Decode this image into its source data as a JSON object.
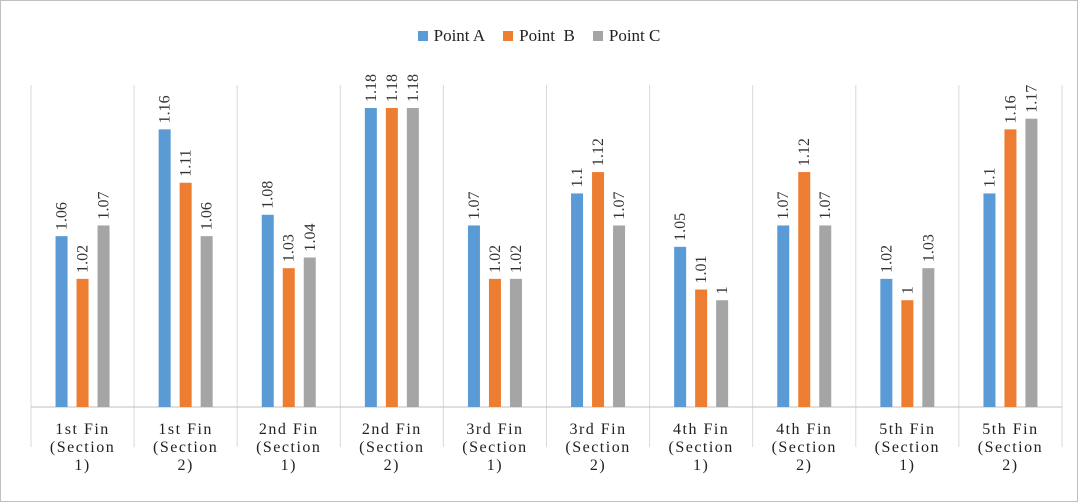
{
  "chart_data": {
    "type": "bar",
    "categories": [
      [
        "1st Fin",
        "(Section",
        "1)"
      ],
      [
        "1st Fin",
        "(Section",
        "2)"
      ],
      [
        "2nd Fin",
        "(Section",
        "1)"
      ],
      [
        "2nd Fin",
        "(Section",
        "2)"
      ],
      [
        "3rd Fin",
        "(Section",
        "1)"
      ],
      [
        "3rd Fin",
        "(Section",
        "2)"
      ],
      [
        "4th Fin",
        "(Section",
        "1)"
      ],
      [
        "4th Fin",
        "(Section",
        "2)"
      ],
      [
        "5th Fin",
        "(Section",
        "1)"
      ],
      [
        "5th Fin",
        "(Section",
        "2)"
      ]
    ],
    "series": [
      {
        "name": "Point A",
        "color": "#5b9bd5",
        "values": [
          1.06,
          1.16,
          1.08,
          1.18,
          1.07,
          1.1,
          1.05,
          1.07,
          1.02,
          1.1
        ]
      },
      {
        "name": "Point  B",
        "color": "#ed7d31",
        "values": [
          1.02,
          1.11,
          1.03,
          1.18,
          1.02,
          1.12,
          1.01,
          1.12,
          1,
          1.16
        ]
      },
      {
        "name": "Point C",
        "color": "#a5a5a5",
        "values": [
          1.07,
          1.06,
          1.04,
          1.18,
          1.02,
          1.07,
          1,
          1.07,
          1.03,
          1.17
        ]
      }
    ],
    "title": "",
    "xlabel": "",
    "ylabel": "",
    "ylim": [
      0.9,
      1.18
    ],
    "grid": false,
    "legend_position": "top-center"
  }
}
